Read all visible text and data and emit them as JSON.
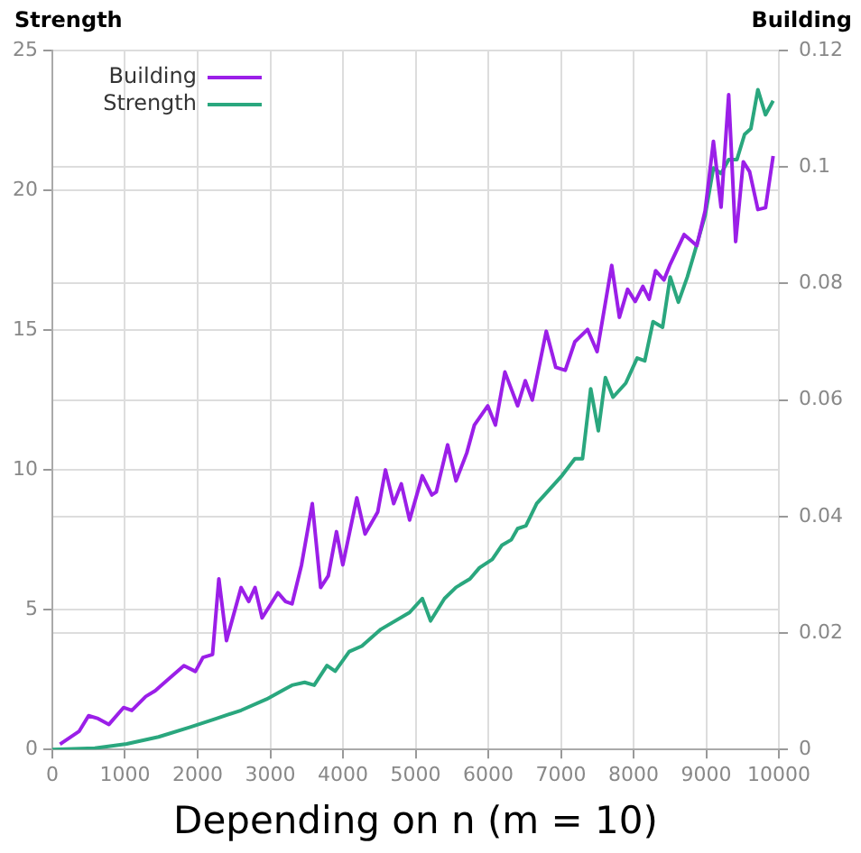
{
  "chart_data": {
    "type": "line",
    "xlabel": "Depending on n (m = 10)",
    "ylabel": "Strength",
    "y2label": "Building",
    "xlim": [
      0,
      10000
    ],
    "xticks": [
      0,
      1000,
      2000,
      3000,
      4000,
      5000,
      6000,
      7000,
      8000,
      9000,
      10000
    ],
    "ylim": [
      0,
      25
    ],
    "yticks": [
      0,
      5,
      10,
      15,
      20,
      25
    ],
    "y2lim": [
      0,
      0.12
    ],
    "y2ticks": [
      0,
      0.02,
      0.04,
      0.06,
      0.08,
      0.1,
      0.12
    ],
    "grid": true,
    "legend": "top left",
    "marker": "none",
    "line_style": "solid",
    "series": [
      {
        "name": "Building",
        "color": "#9b1fe8",
        "axis": "y2",
        "x": [
          105,
          367,
          499,
          630,
          779,
          980,
          1094,
          1286,
          1417,
          1636,
          1811,
          1969,
          2073,
          2205,
          2292,
          2397,
          2598,
          2703,
          2790,
          2887,
          3105,
          3210,
          3299,
          3430,
          3578,
          3693,
          3798,
          3911,
          3998,
          4191,
          4304,
          4479,
          4585,
          4698,
          4803,
          4917,
          5092,
          5223,
          5284,
          5441,
          5556,
          5704,
          5809,
          5993,
          6098,
          6229,
          6404,
          6509,
          6606,
          6798,
          6929,
          7060,
          7192,
          7367,
          7498,
          7699,
          7805,
          7918,
          8023,
          8128,
          8215,
          8303,
          8418,
          8504,
          8696,
          8871,
          8985,
          9099,
          9204,
          9309,
          9405,
          9510,
          9597,
          9711,
          9816,
          9921
        ],
        "values": [
          0.0009,
          0.0031,
          0.0058,
          0.0053,
          0.0043,
          0.0072,
          0.0067,
          0.0091,
          0.0101,
          0.0125,
          0.0144,
          0.0134,
          0.0158,
          0.0163,
          0.0293,
          0.0187,
          0.0278,
          0.0254,
          0.0278,
          0.0226,
          0.0269,
          0.0254,
          0.025,
          0.0317,
          0.0422,
          0.0278,
          0.0298,
          0.0374,
          0.0317,
          0.0432,
          0.037,
          0.0408,
          0.048,
          0.0422,
          0.0456,
          0.0394,
          0.047,
          0.0437,
          0.0442,
          0.0523,
          0.0461,
          0.0509,
          0.0557,
          0.059,
          0.0557,
          0.0648,
          0.059,
          0.0633,
          0.06,
          0.0718,
          0.0656,
          0.0651,
          0.07,
          0.0721,
          0.0683,
          0.0831,
          0.0742,
          0.079,
          0.0769,
          0.0795,
          0.0773,
          0.0822,
          0.0806,
          0.0833,
          0.0884,
          0.0865,
          0.0925,
          0.1044,
          0.0931,
          0.1124,
          0.0872,
          0.1009,
          0.0992,
          0.0927,
          0.093,
          0.1019
        ]
      },
      {
        "name": "Strength",
        "color": "#2aa77e",
        "x": [
          0,
          585,
          1024,
          1462,
          1898,
          2249,
          2598,
          2948,
          3299,
          3473,
          3604,
          3780,
          3893,
          4086,
          4260,
          4523,
          4917,
          5092,
          5206,
          5398,
          5556,
          5748,
          5879,
          6055,
          6186,
          6317,
          6404,
          6518,
          6667,
          6842,
          7016,
          7192,
          7297,
          7410,
          7515,
          7612,
          7717,
          7892,
          8049,
          8154,
          8268,
          8399,
          8504,
          8617,
          8740,
          8853,
          8985,
          9099,
          9204,
          9309,
          9423,
          9528,
          9614,
          9711,
          9816,
          9921
        ],
        "values": [
          0,
          0.05,
          0.2,
          0.45,
          0.8,
          1.1,
          1.4,
          1.8,
          2.3,
          2.4,
          2.3,
          3.0,
          2.8,
          3.5,
          3.7,
          4.3,
          4.9,
          5.4,
          4.6,
          5.4,
          5.8,
          6.1,
          6.5,
          6.8,
          7.3,
          7.5,
          7.9,
          8.0,
          8.8,
          9.3,
          9.8,
          10.4,
          10.4,
          12.9,
          11.4,
          13.3,
          12.6,
          13.1,
          14.0,
          13.9,
          15.3,
          15.1,
          16.9,
          16.0,
          16.9,
          17.9,
          19.1,
          20.8,
          20.6,
          21.1,
          21.1,
          22.0,
          22.2,
          23.6,
          22.7,
          23.2
        ]
      }
    ]
  }
}
